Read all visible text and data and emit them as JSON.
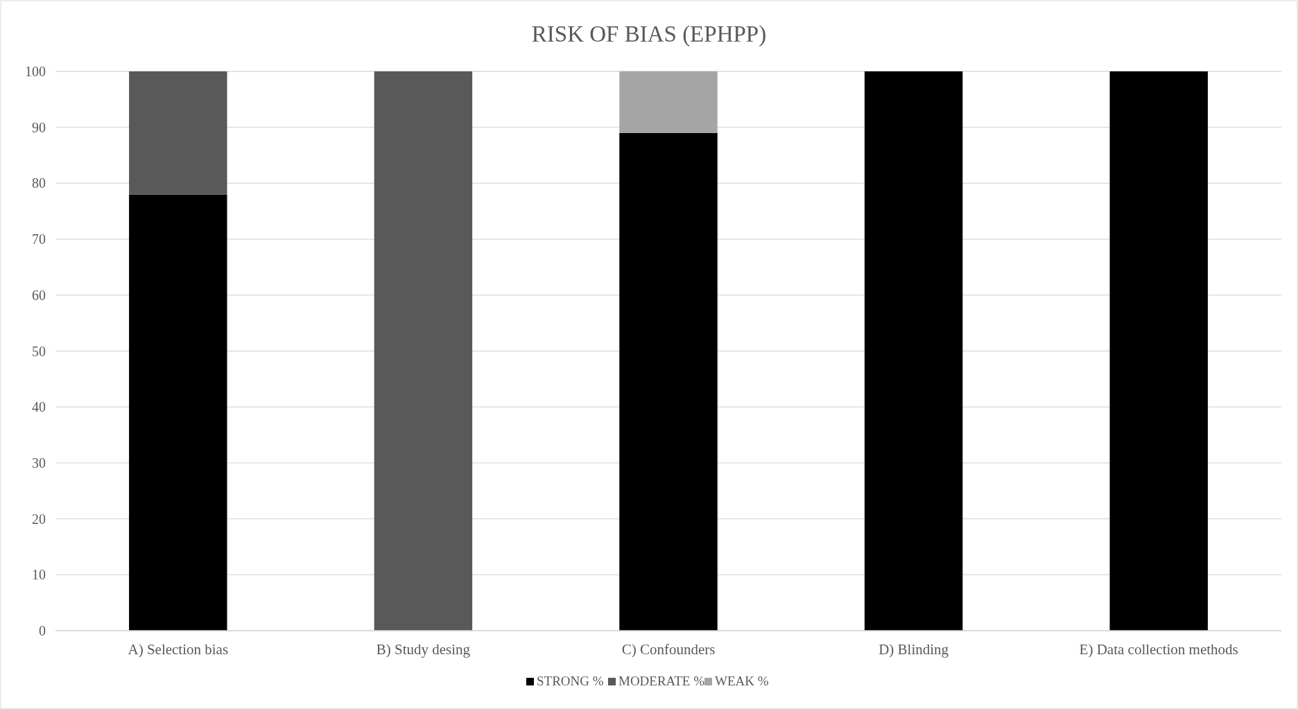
{
  "chart_data": {
    "type": "bar",
    "title": "RISK OF BIAS (EPHPP)",
    "stacked": true,
    "categories": [
      "A) Selection bias",
      "B) Study desing",
      "C) Confounders",
      "D) Blinding",
      "E) Data collection methods"
    ],
    "series": [
      {
        "name": "STRONG %",
        "color": "#000000",
        "values": [
          78,
          0,
          89,
          100,
          100
        ]
      },
      {
        "name": "MODERATE %",
        "color": "#595959",
        "values": [
          22,
          100,
          0,
          0,
          0
        ]
      },
      {
        "name": "WEAK %",
        "color": "#a5a5a5",
        "values": [
          0,
          0,
          11,
          0,
          0
        ]
      }
    ],
    "ylim": [
      0,
      100
    ],
    "yticks": [
      0,
      10,
      20,
      30,
      40,
      50,
      60,
      70,
      80,
      90,
      100
    ],
    "grid": "y",
    "legend": "bottom"
  }
}
